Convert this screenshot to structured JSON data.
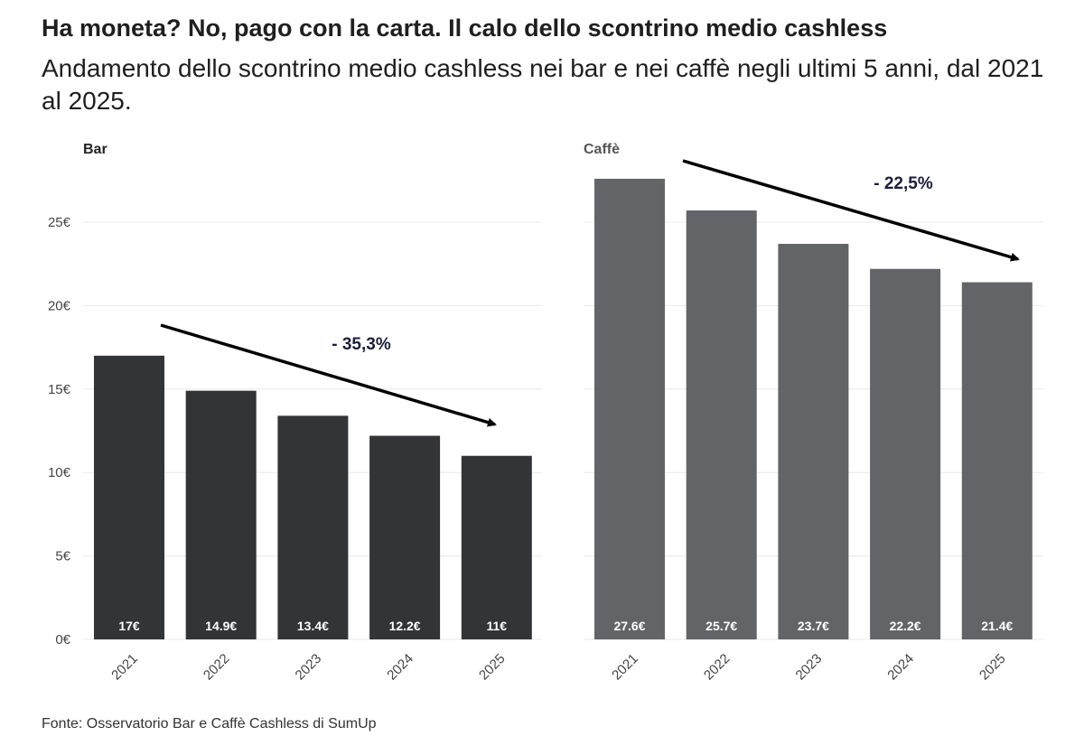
{
  "title": "Ha moneta? No, pago con la carta. Il calo dello scontrino medio cashless",
  "subtitle": "Andamento dello scontrino medio cashless nei bar e nei caffè negli ultimi 5 anni, dal 2021 al 2025.",
  "source": "Fonte: Osservatorio Bar e Caffè Cashless di SumUp",
  "chart_data": [
    {
      "type": "bar",
      "title": "Bar",
      "categories": [
        "2021",
        "2022",
        "2023",
        "2024",
        "2025"
      ],
      "values": [
        17,
        14.9,
        13.4,
        12.2,
        11
      ],
      "data_labels": [
        "17€",
        "14.9€",
        "13.4€",
        "12.2€",
        "11€"
      ],
      "yticks": [
        0,
        5,
        10,
        15,
        20,
        25
      ],
      "ytick_labels": [
        "0€",
        "5€",
        "10€",
        "15€",
        "20€",
        "25€"
      ],
      "ylim": [
        0,
        28
      ],
      "grid": true,
      "color": "#333436",
      "annotation": "- 35,3%"
    },
    {
      "type": "bar",
      "title": "Caffè",
      "categories": [
        "2021",
        "2022",
        "2023",
        "2024",
        "2025"
      ],
      "values": [
        27.6,
        25.7,
        23.7,
        22.2,
        21.4
      ],
      "data_labels": [
        "27.6€",
        "25.7€",
        "23.7€",
        "22.2€",
        "21.4€"
      ],
      "ylim": [
        0,
        28
      ],
      "grid": true,
      "color": "#636468",
      "annotation": "- 22,5%"
    }
  ]
}
